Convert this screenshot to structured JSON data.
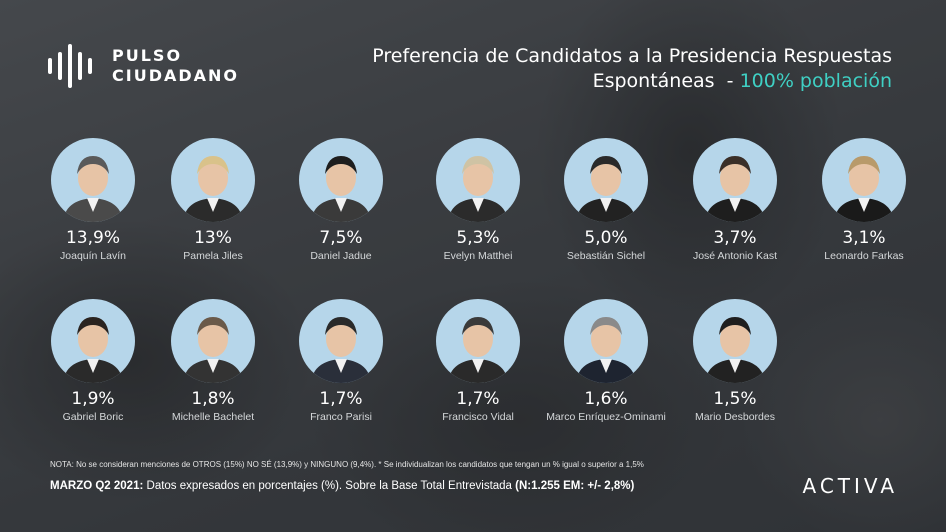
{
  "logo": {
    "line1": "PULSO",
    "line2": "CIUDADANO"
  },
  "title": {
    "line1": "Preferencia de Candidatos a la Presidencia Respuestas",
    "line2_main": "Espontáneas",
    "line2_sep": "-",
    "line2_accent": "100% población"
  },
  "chart_data": {
    "type": "table",
    "title": "Preferencia de Candidatos a la Presidencia Respuestas Espontáneas - 100% población",
    "categories": [
      "Joaquín Lavín",
      "Pamela Jiles",
      "Daniel Jadue",
      "Evelyn Matthei",
      "Sebastián Sichel",
      "José Antonio Kast",
      "Leonardo Farkas",
      "Gabriel Boric",
      "Michelle Bachelet",
      "Franco Parisi",
      "Francisco Vidal",
      "Marco Enríquez-Ominami",
      "Mario Desbordes"
    ],
    "labels": [
      "13,9%",
      "13%",
      "7,5%",
      "5,3%",
      "5,0%",
      "3,7%",
      "3,1%",
      "1,9%",
      "1,8%",
      "1,7%",
      "1,7%",
      "1,6%",
      "1,5%"
    ],
    "values": [
      13.9,
      13.0,
      7.5,
      5.3,
      5.0,
      3.7,
      3.1,
      1.9,
      1.8,
      1.7,
      1.7,
      1.6,
      1.5
    ],
    "unit": "%"
  },
  "footer": {
    "nota": "NOTA: No se consideran menciones de OTROS (15%) NO SÉ (13,9%) y NINGUNO (9,4%).  * Se individualizan los candidatos que tengan un % igual o superior a 1,5%",
    "period": "MARZO Q2 2021:",
    "desc": "Datos expresados en porcentajes (%). Sobre la Base Total Entrevistada",
    "sample": "(N:1.255 EM: +/- 2,8%)"
  },
  "brand": "ACTIVA",
  "colors": {
    "accent": "#3fd0c4",
    "photo_bg": "#b6d6ea"
  }
}
